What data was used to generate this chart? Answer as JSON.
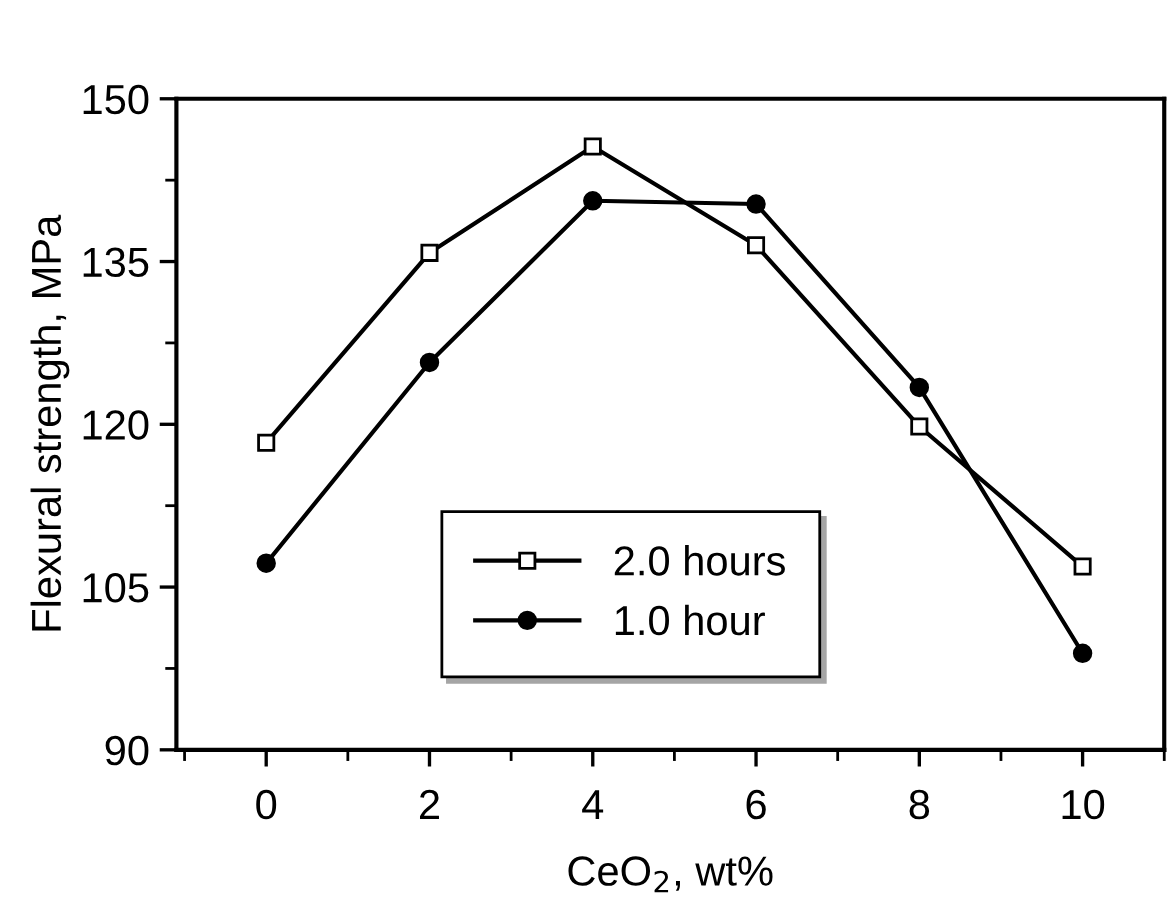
{
  "chart_data": {
    "type": "line",
    "xlabel": "CeO$_{2}$, wt%",
    "ylabel": "Flexural strength, MPa",
    "x": [
      0,
      2,
      4,
      6,
      8,
      10
    ],
    "series": [
      {
        "name": "2.0 hours",
        "color": "#000000",
        "marker": "square",
        "values": [
          118.3,
          135.8,
          145.6,
          136.5,
          119.8,
          106.9
        ]
      },
      {
        "name": "1.0 hour",
        "color": "#000000",
        "marker": "circle",
        "values": [
          107.2,
          125.7,
          140.6,
          140.3,
          123.4,
          98.9
        ]
      }
    ],
    "xlim": [
      -1.1,
      11
    ],
    "xticks": [
      0,
      2,
      4,
      6,
      8,
      10
    ],
    "ylim": [
      90,
      150
    ],
    "yticks": [
      90,
      105,
      120,
      135,
      150
    ],
    "grid": false,
    "legend": "bottom",
    "line_style": "solid"
  }
}
